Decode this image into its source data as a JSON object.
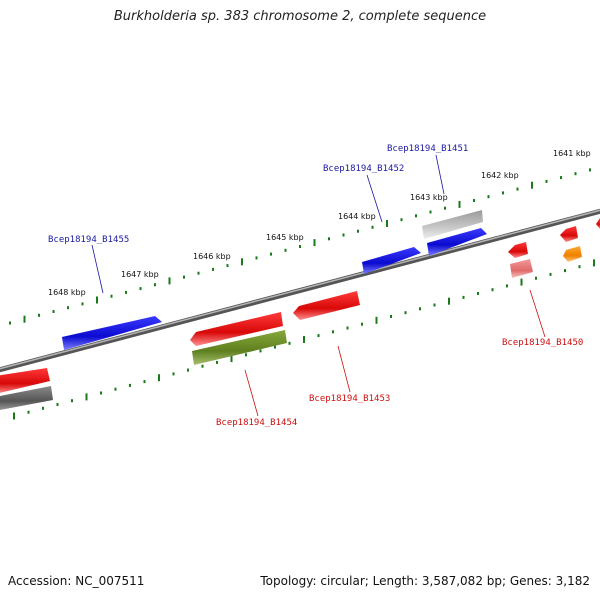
{
  "title": "Burkholderia sp. 383 chromosome 2, complete sequence",
  "footer": {
    "accession": "Accession: NC_007511",
    "topology": "Topology: circular; Length: 3,587,082 bp; Genes: 3,182"
  },
  "colors": {
    "backbone": "#777777",
    "tick": "#1a7a1a",
    "forward_gene": "#1010dd",
    "reverse_gene": "#e01010",
    "forward_label": "#1a1aa0",
    "reverse_label": "#cc1010",
    "gray_gene": "#bdbdbd",
    "olive_gene": "#6b8e23",
    "dark_gray_gene": "#666666",
    "pink_gene": "#f08080",
    "orange_gene": "#ff8c00"
  },
  "kbp_labels": [
    "1641 kbp",
    "1642 kbp",
    "1643 kbp",
    "1644 kbp",
    "1645 kbp",
    "1646 kbp",
    "1647 kbp",
    "1648 kbp"
  ],
  "gene_labels": {
    "b1451": "Bcep18194_B1451",
    "b1452": "Bcep18194_B1452",
    "b1455": "Bcep18194_B1455",
    "b1450": "Bcep18194_B1450",
    "b1453": "Bcep18194_B1453",
    "b1454": "Bcep18194_B1454"
  }
}
